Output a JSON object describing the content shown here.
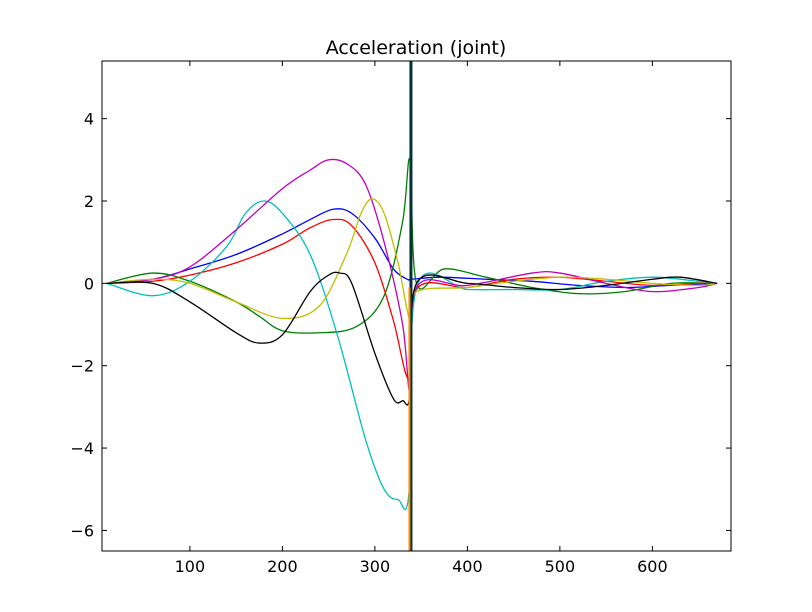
{
  "chart_data": {
    "type": "line",
    "title": "Acceleration (joint)",
    "xlabel": "",
    "ylabel": "",
    "xlim": [
      5,
      685
    ],
    "ylim": [
      -6.5,
      5.4
    ],
    "x_ticks": [
      100,
      200,
      300,
      400,
      500,
      600
    ],
    "y_ticks": [
      -6,
      -4,
      -2,
      0,
      2,
      4
    ],
    "y_tick_labels": [
      "−6",
      "−4",
      "−2",
      "0",
      "2",
      "4"
    ],
    "grid": false,
    "legend": "none",
    "series": [
      {
        "color": "#0000ff",
        "x": [
          10,
          60,
          100,
          150,
          200,
          230,
          255,
          275,
          300,
          320,
          335,
          340,
          370,
          420,
          470,
          520,
          570,
          620,
          670
        ],
        "y": [
          0,
          0.1,
          0.35,
          0.7,
          1.2,
          1.55,
          1.8,
          1.7,
          1.1,
          0.35,
          0.1,
          0.1,
          0.15,
          0.1,
          0.05,
          -0.05,
          -0.1,
          -0.05,
          0
        ]
      },
      {
        "color": "#008000",
        "x": [
          10,
          60,
          100,
          150,
          175,
          200,
          240,
          280,
          310,
          330,
          338,
          345,
          375,
          420,
          470,
          520,
          570,
          620,
          670
        ],
        "y": [
          0,
          0.25,
          0.05,
          -0.45,
          -0.8,
          -1.15,
          -1.2,
          -1.05,
          -0.3,
          1.5,
          3.0,
          0.0,
          0.35,
          0.15,
          -0.1,
          -0.25,
          -0.2,
          0.0,
          0
        ]
      },
      {
        "color": "#ff0000",
        "x": [
          10,
          60,
          100,
          150,
          200,
          230,
          255,
          275,
          300,
          320,
          337,
          345,
          400,
          450,
          500,
          550,
          600,
          650,
          670
        ],
        "y": [
          0,
          0.05,
          0.2,
          0.5,
          0.95,
          1.35,
          1.55,
          1.4,
          0.5,
          -0.9,
          -2.3,
          -0.15,
          -0.1,
          0.1,
          0.15,
          0.05,
          -0.05,
          0.0,
          0
        ]
      },
      {
        "color": "#00bfbf",
        "x": [
          10,
          60,
          100,
          140,
          160,
          180,
          200,
          230,
          260,
          290,
          310,
          325,
          337,
          345,
          400,
          450,
          500,
          550,
          600,
          650,
          670
        ],
        "y": [
          0,
          -0.3,
          0.05,
          0.9,
          1.7,
          2.0,
          1.7,
          0.7,
          -1.3,
          -3.8,
          -5.0,
          -5.25,
          -5.05,
          -0.1,
          -0.15,
          -0.15,
          -0.15,
          0.05,
          0.15,
          0.05,
          0
        ]
      },
      {
        "color": "#bf00bf",
        "x": [
          10,
          60,
          100,
          150,
          200,
          230,
          250,
          270,
          290,
          310,
          330,
          338,
          345,
          400,
          470,
          500,
          550,
          600,
          650,
          670
        ],
        "y": [
          0,
          0.1,
          0.4,
          1.3,
          2.3,
          2.75,
          3.0,
          2.9,
          2.4,
          1.0,
          -1.0,
          -2.6,
          -0.1,
          -0.05,
          0.25,
          0.25,
          0.0,
          -0.2,
          -0.1,
          0
        ]
      },
      {
        "color": "#bfbf00",
        "x": [
          10,
          60,
          100,
          150,
          200,
          240,
          270,
          285,
          297,
          310,
          325,
          338,
          345,
          400,
          450,
          500,
          550,
          600,
          650,
          670
        ],
        "y": [
          0,
          0.1,
          0.0,
          -0.45,
          -0.85,
          -0.55,
          0.75,
          1.7,
          2.05,
          1.7,
          0.5,
          -0.9,
          -0.2,
          -0.1,
          0.05,
          0.15,
          0.1,
          0.0,
          -0.05,
          0
        ]
      },
      {
        "color": "#000000",
        "x": [
          10,
          60,
          100,
          150,
          175,
          200,
          230,
          250,
          262,
          275,
          300,
          320,
          330,
          338,
          345,
          400,
          450,
          500,
          550,
          600,
          630,
          670
        ],
        "y": [
          0,
          0.0,
          -0.45,
          -1.2,
          -1.45,
          -1.25,
          -0.2,
          0.2,
          0.25,
          0.0,
          -1.7,
          -2.8,
          -2.85,
          -2.7,
          0.0,
          0.0,
          -0.1,
          -0.15,
          -0.05,
          0.1,
          0.15,
          0
        ]
      }
    ],
    "vertical_spike": {
      "x": 339,
      "colors": [
        "#003333",
        "#ff8c00"
      ]
    }
  }
}
